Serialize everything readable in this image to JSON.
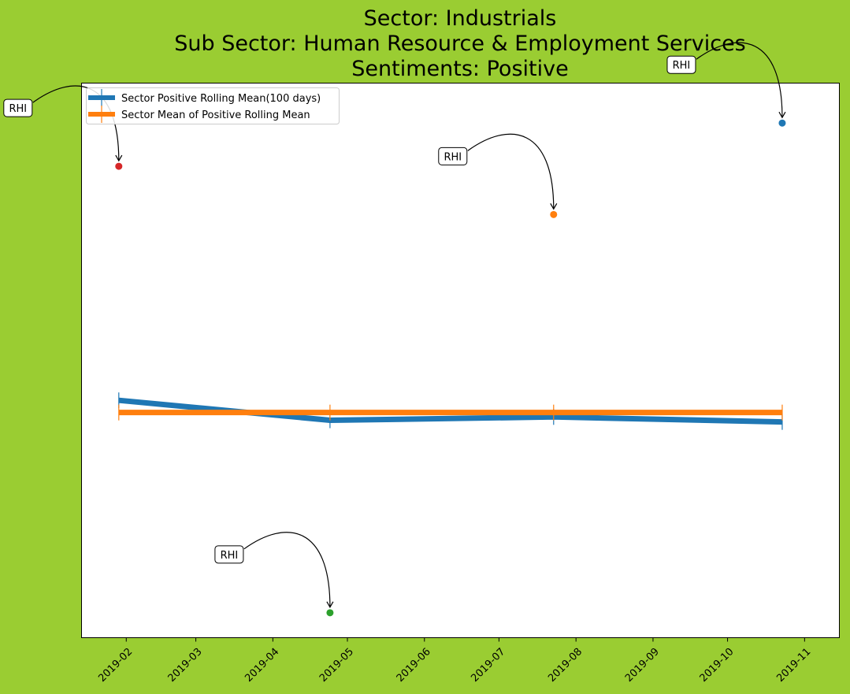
{
  "figure": {
    "background": "#9acd32",
    "title_lines": [
      "Sector:  Industrials",
      "Sub Sector:  Human Resource & Employment Services",
      "Sentiments:  Positive"
    ]
  },
  "chart_data": {
    "type": "line",
    "title": "Sector:  Industrials\nSub Sector:  Human Resource & Employment Services\nSentiments:  Positive",
    "xlabel": "",
    "ylabel": "",
    "x_axis": {
      "type": "date",
      "range": [
        "2019-01-14",
        "2019-11-15"
      ],
      "tick_labels": [
        "2019-02",
        "2019-03",
        "2019-04",
        "2019-05",
        "2019-06",
        "2019-07",
        "2019-08",
        "2019-09",
        "2019-10",
        "2019-11"
      ],
      "tick_dates": [
        "2019-02-01",
        "2019-03-01",
        "2019-04-01",
        "2019-05-01",
        "2019-06-01",
        "2019-07-01",
        "2019-08-01",
        "2019-09-01",
        "2019-10-01",
        "2019-11-01"
      ]
    },
    "y_axis": {
      "visible_ticks": false,
      "range": [
        0,
        100
      ]
    },
    "grid": false,
    "legend_position": "top-left",
    "series": [
      {
        "name": "Sector Positive Rolling Mean(100 days)",
        "color": "#1f77b4",
        "x": [
          "2019-01-29",
          "2019-04-24",
          "2019-07-23",
          "2019-10-23"
        ],
        "values": [
          42.8,
          39.2,
          39.8,
          38.9
        ]
      },
      {
        "name": "Sector Mean of Positive Rolling Mean",
        "color": "#ff7f0e",
        "x": [
          "2019-01-29",
          "2019-04-24",
          "2019-07-23",
          "2019-10-23"
        ],
        "values": [
          40.6,
          40.6,
          40.6,
          40.6
        ]
      }
    ],
    "annotations": [
      {
        "text": "RHI",
        "x": "2019-01-29",
        "y": 85.0,
        "marker_color": "#d62728"
      },
      {
        "text": "RHI",
        "x": "2019-04-24",
        "y": 4.5,
        "marker_color": "#2ca02c"
      },
      {
        "text": "RHI",
        "x": "2019-07-23",
        "y": 76.3,
        "marker_color": "#ff7f0e"
      },
      {
        "text": "RHI",
        "x": "2019-10-23",
        "y": 92.8,
        "marker_color": "#1f77b4"
      }
    ]
  }
}
